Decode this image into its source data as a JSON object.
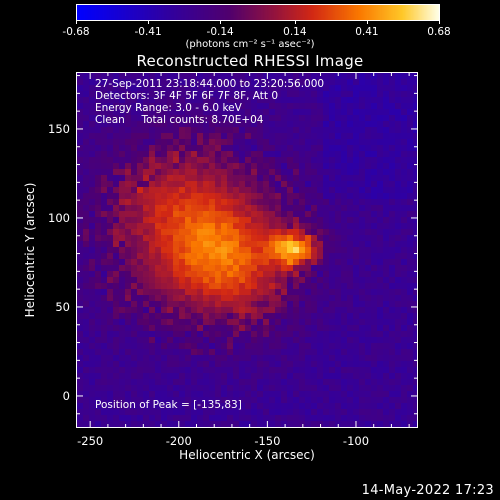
{
  "colorbar": {
    "tick_labels": [
      "-0.68",
      "-0.41",
      "-0.14",
      "0.14",
      "0.41",
      "0.68"
    ],
    "units_label": "(photons cm⁻² s⁻¹ asec⁻²)"
  },
  "plot": {
    "title": "Reconstructed RHESSI Image",
    "info_lines": [
      "27-Sep-2011 23:18:44.000 to 23:20:56.000",
      "Detectors: 3F 4F 5F 6F 7F 8F, Att 0",
      "Energy Range: 3.0 - 6.0 keV",
      "Clean     Total counts: 8.70E+04"
    ],
    "peak_note": "Position of Peak = [-135,83]",
    "xlabel": "Heliocentric X (arcsec)",
    "ylabel": "Heliocentric Y (arcsec)",
    "x_tick_labels": [
      "-250",
      "-200",
      "-150",
      "-100"
    ],
    "y_tick_labels": [
      "0",
      "50",
      "100",
      "150"
    ]
  },
  "footer": {
    "timestamp": "14-May-2022 17:23"
  },
  "image_meta": {
    "x_range": [
      -258,
      -65
    ],
    "y_range": [
      -18,
      182
    ],
    "peak_position": [
      -135,
      83
    ],
    "colormap": "rhessi-fire",
    "colorbar_range": [
      -0.68,
      0.68
    ]
  }
}
